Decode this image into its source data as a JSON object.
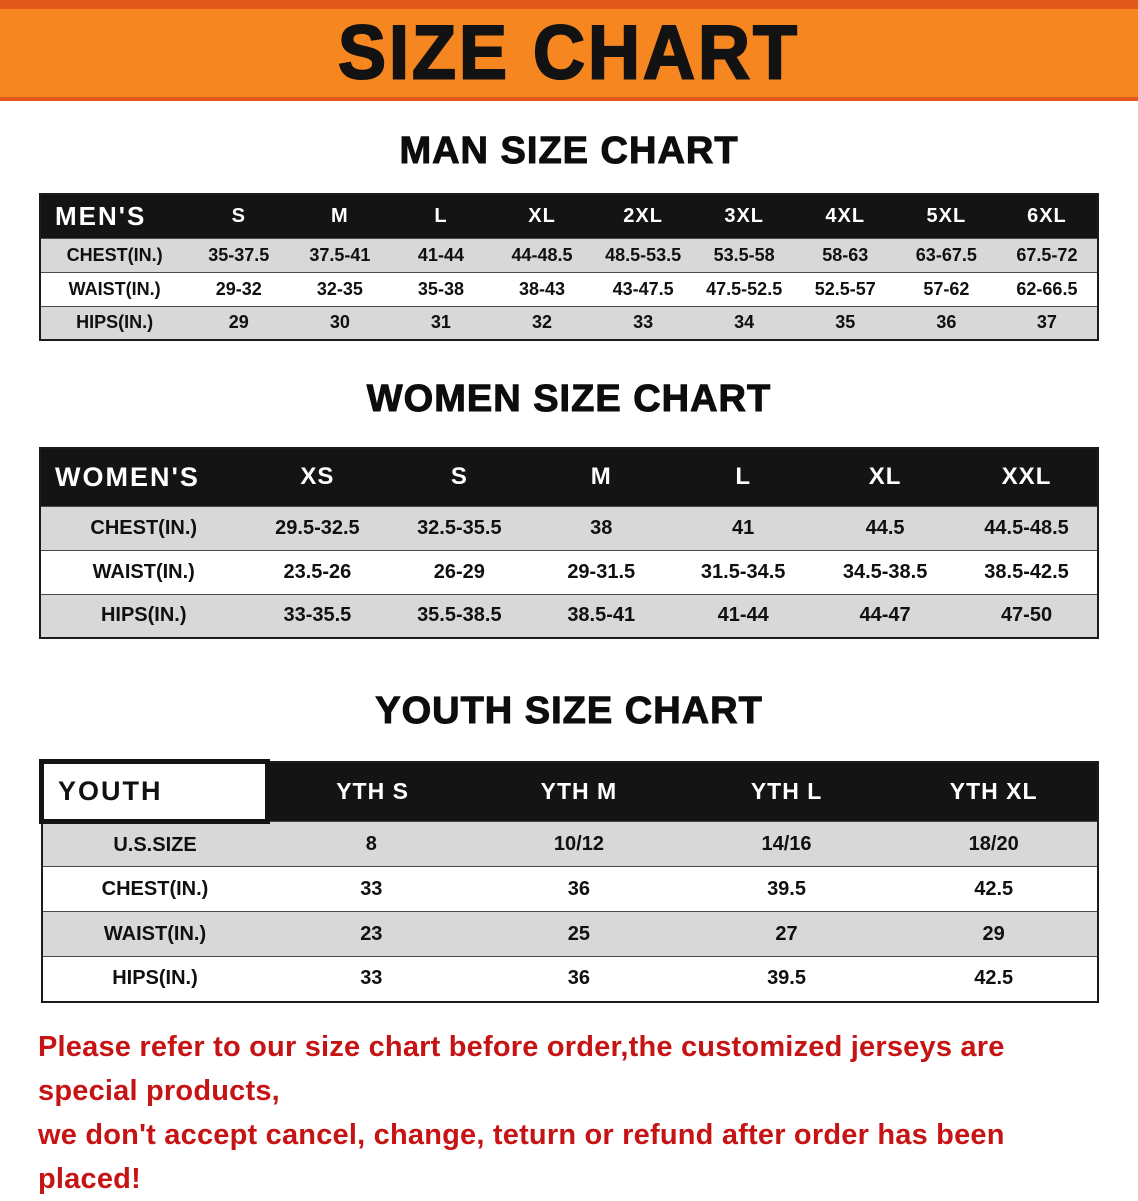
{
  "banner": {
    "title": "SIZE CHART"
  },
  "colors": {
    "banner_orange": "#f6861f",
    "banner_edge": "#e2571b",
    "header_black": "#141414",
    "stripe_gray": "#d8d8d8",
    "notice_red": "#c61414"
  },
  "sections": [
    {
      "heading": "MAN SIZE CHART",
      "table": {
        "header": [
          "MEN'S",
          "S",
          "M",
          "L",
          "XL",
          "2XL",
          "3XL",
          "4XL",
          "5XL",
          "6XL"
        ],
        "rows": [
          [
            "CHEST(IN.)",
            "35-37.5",
            "37.5-41",
            "41-44",
            "44-48.5",
            "48.5-53.5",
            "53.5-58",
            "58-63",
            "63-67.5",
            "67.5-72"
          ],
          [
            "WAIST(IN.)",
            "29-32",
            "32-35",
            "35-38",
            "38-43",
            "43-47.5",
            "47.5-52.5",
            "52.5-57",
            "57-62",
            "62-66.5"
          ],
          [
            "HIPS(IN.)",
            "29",
            "30",
            "31",
            "32",
            "33",
            "34",
            "35",
            "36",
            "37"
          ]
        ]
      }
    },
    {
      "heading": "WOMEN SIZE CHART",
      "table": {
        "header": [
          "WOMEN'S",
          "XS",
          "S",
          "M",
          "L",
          "XL",
          "XXL"
        ],
        "rows": [
          [
            "CHEST(IN.)",
            "29.5-32.5",
            "32.5-35.5",
            "38",
            "41",
            "44.5",
            "44.5-48.5"
          ],
          [
            "WAIST(IN.)",
            "23.5-26",
            "26-29",
            "29-31.5",
            "31.5-34.5",
            "34.5-38.5",
            "38.5-42.5"
          ],
          [
            "HIPS(IN.)",
            "33-35.5",
            "35.5-38.5",
            "38.5-41",
            "41-44",
            "44-47",
            "47-50"
          ]
        ]
      }
    },
    {
      "heading": "YOUTH SIZE CHART",
      "table": {
        "header": [
          "YOUTH",
          "YTH S",
          "YTH M",
          "YTH L",
          "YTH XL"
        ],
        "rows": [
          [
            "U.S.SIZE",
            "8",
            "10/12",
            "14/16",
            "18/20"
          ],
          [
            "CHEST(IN.)",
            "33",
            "36",
            "39.5",
            "42.5"
          ],
          [
            "WAIST(IN.)",
            "23",
            "25",
            "27",
            "29"
          ],
          [
            "HIPS(IN.)",
            "33",
            "36",
            "39.5",
            "42.5"
          ]
        ]
      }
    }
  ],
  "notice": {
    "line1": "Please refer to our size chart before order,the customized jerseys are special products,",
    "line2": "we don't accept cancel, change, teturn or refund after order has been placed!"
  }
}
